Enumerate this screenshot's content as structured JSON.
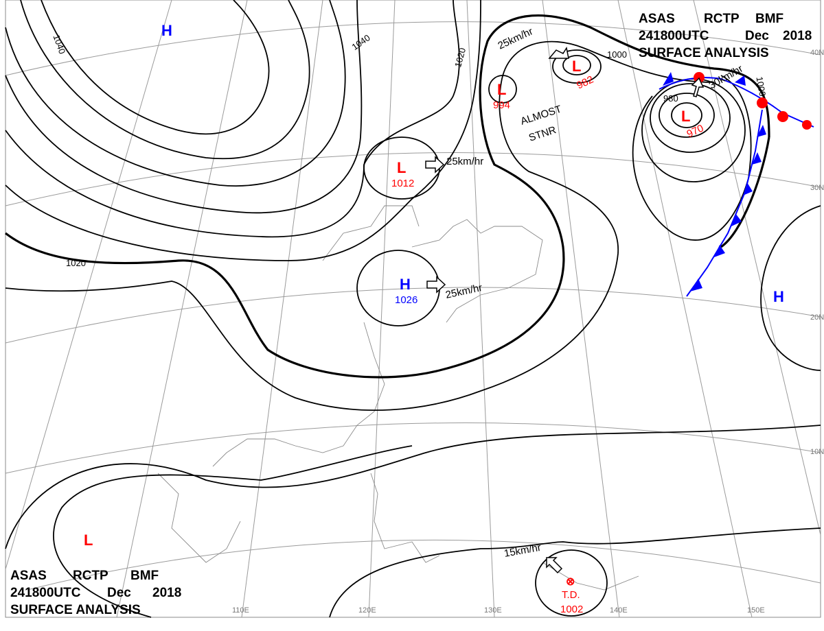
{
  "header_top_right": {
    "line1": [
      "ASAS",
      "RCTP",
      "BMF"
    ],
    "line2": [
      "241800UTC",
      "Dec",
      "2018"
    ],
    "line3": "SURFACE ANALYSIS"
  },
  "header_bottom_left": {
    "line1": [
      "ASAS",
      "RCTP",
      "BMF"
    ],
    "line2": [
      "241800UTC",
      "Dec",
      "2018"
    ],
    "line3": "SURFACE ANALYSIS"
  },
  "colors": {
    "high": "#0000ff",
    "low": "#ff0000",
    "cold_front": "#0000ff",
    "warm_front": "#ff0000",
    "isobar": "#000000",
    "grid": "#9a9a9a"
  },
  "pressure_centers": [
    {
      "type": "H",
      "value": ""
    },
    {
      "type": "L",
      "value": "1012"
    },
    {
      "type": "H",
      "value": "1026"
    },
    {
      "type": "L",
      "value": "994"
    },
    {
      "type": "L",
      "value": "982"
    },
    {
      "type": "L",
      "value": "970"
    },
    {
      "type": "H",
      "value": ""
    },
    {
      "type": "L",
      "value": ""
    },
    {
      "type": "T.D.",
      "value": "1002"
    }
  ],
  "isobar_labels": [
    "1040",
    "1040",
    "1020",
    "1020",
    "1000",
    "1000",
    "980"
  ],
  "motions": [
    "25km/hr",
    "25km/hr",
    "25km/hr",
    "30km/hr",
    "15km/hr"
  ],
  "stationary_note": [
    "ALMOST",
    "STNR"
  ],
  "latitude_labels": [
    "40N",
    "30N",
    "20N",
    "10N"
  ],
  "longitude_labels": [
    "110E",
    "120E",
    "130E",
    "140E",
    "150E"
  ]
}
